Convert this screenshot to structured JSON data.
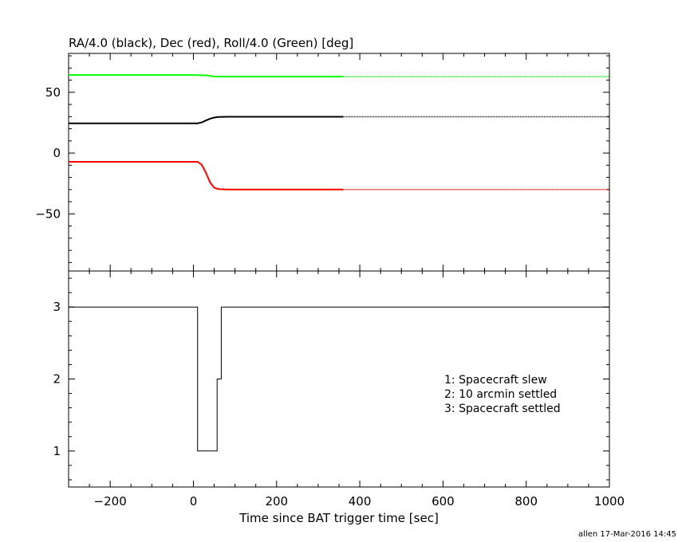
{
  "chart_data": [
    {
      "type": "line",
      "title": "RA/4.0 (black), Dec (red), Roll/4.0 (Green) [deg]",
      "xlim": [
        -300,
        1000
      ],
      "ylim": [
        -97,
        82
      ],
      "ytick_labels": [
        "50",
        "0",
        "−50"
      ],
      "yticks": [
        50,
        0,
        -50
      ],
      "dashed_after_x": 360,
      "series": [
        {
          "color": "#00ff00",
          "points": [
            [
              -300,
              64.2
            ],
            [
              0,
              64.2
            ],
            [
              30,
              64.0
            ],
            [
              50,
              63.0
            ],
            [
              70,
              62.9
            ],
            [
              360,
              62.9
            ],
            [
              1000,
              62.9
            ]
          ]
        },
        {
          "color": "#000000",
          "points": [
            [
              -300,
              24.5
            ],
            [
              10,
              24.5
            ],
            [
              20,
              25.2
            ],
            [
              30,
              26.8
            ],
            [
              40,
              28.3
            ],
            [
              50,
              29.2
            ],
            [
              60,
              29.7
            ],
            [
              80,
              29.9
            ],
            [
              360,
              29.9
            ],
            [
              1000,
              29.9
            ]
          ]
        },
        {
          "color": "#ff0000",
          "points": [
            [
              -300,
              -7.2
            ],
            [
              10,
              -7.2
            ],
            [
              20,
              -9.5
            ],
            [
              30,
              -16
            ],
            [
              40,
              -24
            ],
            [
              50,
              -28.5
            ],
            [
              60,
              -29.6
            ],
            [
              80,
              -29.9
            ],
            [
              360,
              -29.9
            ],
            [
              1000,
              -29.9
            ]
          ]
        }
      ]
    },
    {
      "type": "line",
      "xlabel": "Time since BAT trigger time [sec]",
      "xlim": [
        -300,
        1000
      ],
      "ylim": [
        0.5,
        3.5
      ],
      "xticks": [
        -200,
        0,
        200,
        400,
        600,
        800,
        1000
      ],
      "xtick_labels": [
        "−200",
        "0",
        "200",
        "400",
        "600",
        "800",
        "1000"
      ],
      "yticks": [
        1,
        2,
        3
      ],
      "ytick_labels": [
        "1",
        "2",
        "3"
      ],
      "step_x": [
        -300,
        10,
        10,
        57,
        57,
        67,
        67,
        1000
      ],
      "step_y": [
        3,
        3,
        1,
        1,
        2,
        2,
        3,
        3
      ],
      "annotations": [
        "1: Spacecraft slew",
        "2: 10 arcmin settled",
        "3: Spacecraft settled"
      ]
    }
  ],
  "footer": "allen 17-Mar-2016 14:45"
}
